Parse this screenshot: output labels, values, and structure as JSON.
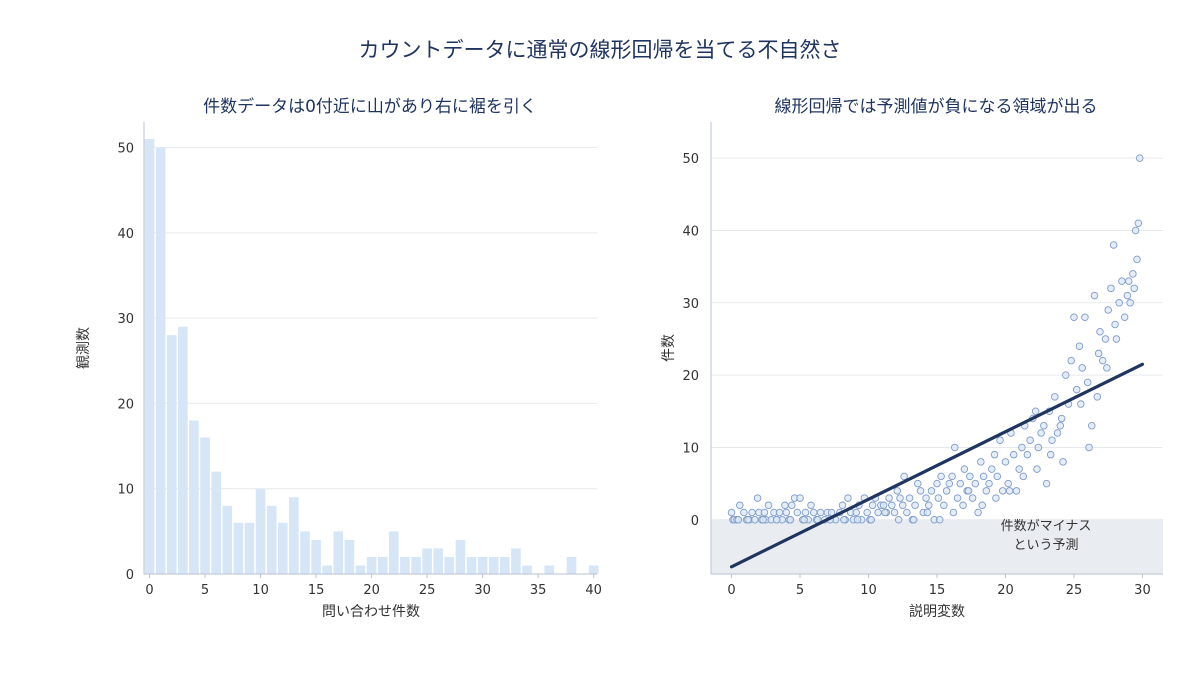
{
  "title": "カウントデータに通常の線形回帰を当てる不自然さ",
  "colors": {
    "bar": "#d6e6f6",
    "point_fill": "#dbe7f5",
    "point_stroke": "#7f9ccb",
    "line": "#1f3560",
    "negative_region": "#e9edf2",
    "grid": "#e6e9ee",
    "axis": "#b9c3d3"
  },
  "chart_data": [
    {
      "type": "bar",
      "title": "件数データは0付近に山があり右に裾を引く",
      "xlabel": "問い合わせ件数",
      "ylabel": "観測数",
      "xlim": [
        -0.5,
        40.3
      ],
      "ylim": [
        0,
        53
      ],
      "xticks": [
        0,
        5,
        10,
        15,
        20,
        25,
        30,
        35,
        40
      ],
      "yticks": [
        0,
        10,
        20,
        30,
        40,
        50
      ],
      "grid": "horizontal",
      "categories": [
        0,
        1,
        2,
        3,
        4,
        5,
        6,
        7,
        8,
        9,
        10,
        11,
        12,
        13,
        14,
        15,
        16,
        17,
        18,
        19,
        20,
        21,
        22,
        23,
        24,
        25,
        26,
        27,
        28,
        29,
        30,
        31,
        32,
        33,
        34,
        35,
        36,
        37,
        38,
        39,
        40
      ],
      "values": [
        51,
        50,
        28,
        29,
        18,
        16,
        12,
        8,
        6,
        6,
        10,
        8,
        6,
        9,
        5,
        4,
        1,
        5,
        4,
        1,
        2,
        2,
        5,
        2,
        2,
        3,
        3,
        2,
        4,
        2,
        2,
        2,
        2,
        3,
        1,
        0,
        1,
        0,
        2,
        0,
        1
      ]
    },
    {
      "type": "scatter",
      "title": "線形回帰では予測値が負になる領域が出る",
      "xlabel": "説明変数",
      "ylabel": "件数",
      "xlim": [
        -1.5,
        31.5
      ],
      "ylim": [
        -7.5,
        55
      ],
      "xticks": [
        0,
        5,
        10,
        15,
        20,
        25,
        30
      ],
      "yticks": [
        0,
        10,
        20,
        30,
        40,
        50
      ],
      "grid": "horizontal",
      "negative_region": {
        "ymin": -7.5,
        "ymax": 0
      },
      "annotation": {
        "lines": [
          "件数がマイナス",
          "という予測"
        ],
        "x": 22.5,
        "y": -2.5
      },
      "regression_line": {
        "x": [
          0,
          30
        ],
        "y": [
          -6.5,
          21.5
        ]
      },
      "points": [
        [
          0.0,
          1
        ],
        [
          0.1,
          0
        ],
        [
          0.2,
          0
        ],
        [
          0.4,
          0
        ],
        [
          0.6,
          2
        ],
        [
          0.9,
          1
        ],
        [
          1.1,
          0
        ],
        [
          1.3,
          0
        ],
        [
          1.5,
          1
        ],
        [
          1.7,
          0
        ],
        [
          1.9,
          3
        ],
        [
          2.0,
          1
        ],
        [
          2.2,
          0
        ],
        [
          2.4,
          1
        ],
        [
          2.5,
          0
        ],
        [
          2.7,
          2
        ],
        [
          2.9,
          0
        ],
        [
          3.1,
          1
        ],
        [
          3.3,
          0
        ],
        [
          3.5,
          1
        ],
        [
          3.7,
          0
        ],
        [
          3.9,
          2
        ],
        [
          4.0,
          1
        ],
        [
          4.2,
          0
        ],
        [
          4.4,
          2
        ],
        [
          4.6,
          3
        ],
        [
          4.8,
          1
        ],
        [
          5.0,
          3
        ],
        [
          5.2,
          0
        ],
        [
          5.4,
          1
        ],
        [
          5.6,
          0
        ],
        [
          5.8,
          2
        ],
        [
          6.0,
          1
        ],
        [
          6.2,
          0
        ],
        [
          6.5,
          1
        ],
        [
          6.8,
          0
        ],
        [
          7.0,
          1
        ],
        [
          7.3,
          1
        ],
        [
          7.6,
          0
        ],
        [
          7.9,
          1
        ],
        [
          8.1,
          2
        ],
        [
          8.3,
          0
        ],
        [
          8.5,
          3
        ],
        [
          8.7,
          1
        ],
        [
          8.9,
          0
        ],
        [
          9.1,
          1
        ],
        [
          9.3,
          2
        ],
        [
          9.5,
          0
        ],
        [
          9.7,
          3
        ],
        [
          9.9,
          1
        ],
        [
          10.1,
          0
        ],
        [
          10.3,
          2
        ],
        [
          10.5,
          3
        ],
        [
          10.7,
          1
        ],
        [
          10.9,
          2
        ],
        [
          11.1,
          2
        ],
        [
          11.3,
          1
        ],
        [
          11.5,
          3
        ],
        [
          11.7,
          2
        ],
        [
          11.9,
          1
        ],
        [
          12.1,
          4
        ],
        [
          12.3,
          3
        ],
        [
          12.5,
          2
        ],
        [
          12.6,
          6
        ],
        [
          12.8,
          1
        ],
        [
          13.0,
          3
        ],
        [
          13.2,
          0
        ],
        [
          13.4,
          2
        ],
        [
          13.6,
          5
        ],
        [
          13.8,
          4
        ],
        [
          14.0,
          1
        ],
        [
          14.2,
          3
        ],
        [
          14.4,
          2
        ],
        [
          14.6,
          4
        ],
        [
          14.8,
          0
        ],
        [
          15.0,
          5
        ],
        [
          15.1,
          3
        ],
        [
          15.3,
          6
        ],
        [
          15.5,
          2
        ],
        [
          15.7,
          4
        ],
        [
          15.9,
          5
        ],
        [
          16.1,
          6
        ],
        [
          16.3,
          10
        ],
        [
          16.5,
          3
        ],
        [
          16.7,
          5
        ],
        [
          16.9,
          2
        ],
        [
          17.0,
          7
        ],
        [
          17.2,
          4
        ],
        [
          17.4,
          6
        ],
        [
          17.6,
          3
        ],
        [
          17.8,
          5
        ],
        [
          18.0,
          1
        ],
        [
          18.2,
          8
        ],
        [
          18.4,
          6
        ],
        [
          18.6,
          4
        ],
        [
          18.8,
          5
        ],
        [
          19.0,
          7
        ],
        [
          19.2,
          9
        ],
        [
          19.4,
          6
        ],
        [
          19.6,
          11
        ],
        [
          19.8,
          4
        ],
        [
          20.0,
          8
        ],
        [
          20.2,
          5
        ],
        [
          20.4,
          12
        ],
        [
          20.6,
          9
        ],
        [
          20.8,
          4
        ],
        [
          21.0,
          7
        ],
        [
          21.2,
          10
        ],
        [
          21.4,
          13
        ],
        [
          21.6,
          9
        ],
        [
          21.8,
          11
        ],
        [
          22.0,
          14
        ],
        [
          22.2,
          15
        ],
        [
          22.4,
          10
        ],
        [
          22.6,
          12
        ],
        [
          22.8,
          13
        ],
        [
          23.0,
          5
        ],
        [
          23.2,
          15
        ],
        [
          23.4,
          11
        ],
        [
          23.6,
          17
        ],
        [
          23.8,
          12
        ],
        [
          24.0,
          13
        ],
        [
          24.2,
          8
        ],
        [
          24.4,
          20
        ],
        [
          24.6,
          16
        ],
        [
          24.8,
          22
        ],
        [
          25.0,
          28
        ],
        [
          25.2,
          18
        ],
        [
          25.4,
          24
        ],
        [
          25.6,
          21
        ],
        [
          25.8,
          28
        ],
        [
          26.0,
          19
        ],
        [
          26.1,
          10
        ],
        [
          26.3,
          13
        ],
        [
          26.5,
          31
        ],
        [
          26.7,
          17
        ],
        [
          26.9,
          26
        ],
        [
          27.1,
          22
        ],
        [
          27.3,
          25
        ],
        [
          27.5,
          29
        ],
        [
          27.7,
          32
        ],
        [
          27.9,
          38
        ],
        [
          28.1,
          25
        ],
        [
          28.3,
          30
        ],
        [
          28.5,
          33
        ],
        [
          28.7,
          28
        ],
        [
          28.9,
          31
        ],
        [
          29.0,
          33
        ],
        [
          29.1,
          30
        ],
        [
          29.3,
          34
        ],
        [
          29.5,
          40
        ],
        [
          29.6,
          36
        ],
        [
          29.7,
          41
        ],
        [
          29.8,
          50
        ],
        [
          29.4,
          32
        ],
        [
          28.0,
          27
        ],
        [
          27.4,
          21
        ],
        [
          26.8,
          23
        ],
        [
          25.5,
          16
        ],
        [
          24.1,
          14
        ],
        [
          23.3,
          9
        ],
        [
          22.3,
          7
        ],
        [
          21.3,
          6
        ],
        [
          20.3,
          4
        ],
        [
          19.3,
          3
        ],
        [
          18.3,
          2
        ],
        [
          17.3,
          4
        ],
        [
          16.2,
          1
        ],
        [
          15.2,
          0
        ],
        [
          14.3,
          1
        ],
        [
          13.3,
          0
        ],
        [
          12.2,
          0
        ],
        [
          11.2,
          1
        ],
        [
          10.2,
          0
        ],
        [
          9.2,
          0
        ],
        [
          8.2,
          0
        ],
        [
          7.2,
          0
        ],
        [
          6.3,
          0
        ],
        [
          5.3,
          0
        ],
        [
          4.3,
          0
        ],
        [
          3.3,
          0
        ],
        [
          2.3,
          0
        ],
        [
          1.2,
          0
        ],
        [
          0.5,
          0
        ]
      ]
    }
  ]
}
